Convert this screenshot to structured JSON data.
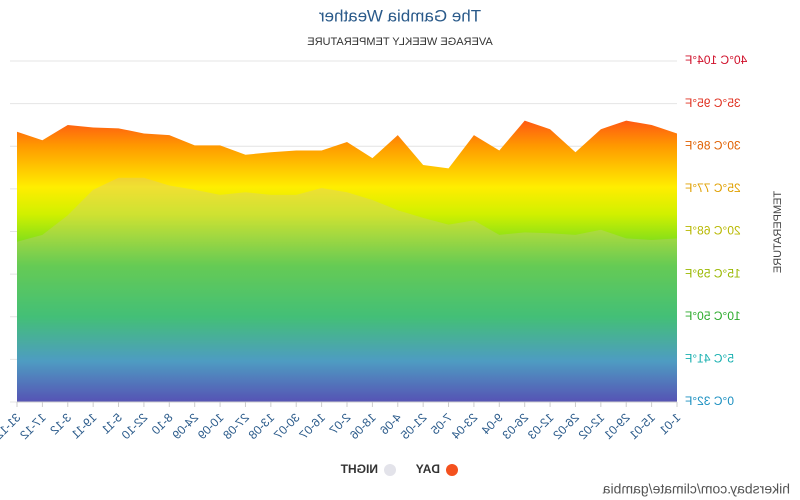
{
  "chart_data": {
    "type": "area",
    "title": "The Gambia Weather",
    "subtitle": "AVERAGE WEEKLY TEMPERATURE",
    "y_label": "TEMPERATURE",
    "watermark": "hikersbay.com/climate/gambia",
    "mirrored": true,
    "categories": [
      "1-01",
      "15-01",
      "29-01",
      "12-02",
      "26-02",
      "12-03",
      "26-03",
      "9-04",
      "23-04",
      "7-05",
      "21-05",
      "4-06",
      "18-06",
      "2-07",
      "16-07",
      "30-07",
      "13-08",
      "27-08",
      "10-09",
      "24-09",
      "8-10",
      "22-10",
      "5-11",
      "19-11",
      "3-12",
      "17-12",
      "31-12"
    ],
    "series": [
      {
        "name": "DAY",
        "color": "#f4511e",
        "values": [
          31.5,
          32.5,
          33,
          32,
          29.3,
          32,
          33,
          29.5,
          31.3,
          27.4,
          27.8,
          31.3,
          28.6,
          30.5,
          29.5,
          29.5,
          29.3,
          29,
          30.1,
          30.1,
          31.3,
          31.5,
          32.1,
          32.2,
          32.5,
          30.7,
          31.7
        ]
      },
      {
        "name": "NIGHT",
        "color": "#e3e3ea",
        "values": [
          19.2,
          19,
          19.2,
          20.2,
          19.6,
          19.8,
          19.9,
          19.6,
          21.3,
          20.8,
          21.6,
          22.5,
          23.7,
          24.6,
          25.1,
          24.3,
          24.3,
          24.6,
          24.3,
          24.9,
          25.4,
          26.3,
          26.3,
          24.9,
          21.9,
          19.6,
          18.8
        ]
      }
    ],
    "ylim": [
      0,
      40
    ],
    "yticks": [
      {
        "value": 0,
        "label": "0°C 32°F"
      },
      {
        "value": 5,
        "label": "5°C 41°F"
      },
      {
        "value": 10,
        "label": "10°C 50°F"
      },
      {
        "value": 15,
        "label": "15°C 59°F"
      },
      {
        "value": 20,
        "label": "20°C 68°F"
      },
      {
        "value": 25,
        "label": "25°C 77°F"
      },
      {
        "value": 30,
        "label": "30°C 86°F"
      },
      {
        "value": 35,
        "label": "35°C 95°F"
      },
      {
        "value": 40,
        "label": "40°C 104°F"
      }
    ],
    "ytick_colors": [
      "#1a8fc0",
      "#19b0b0",
      "#2aaa2a",
      "#9ab800",
      "#b8b800",
      "#e0a000",
      "#e06000",
      "#e03020",
      "#d0102a"
    ],
    "grid": true
  }
}
